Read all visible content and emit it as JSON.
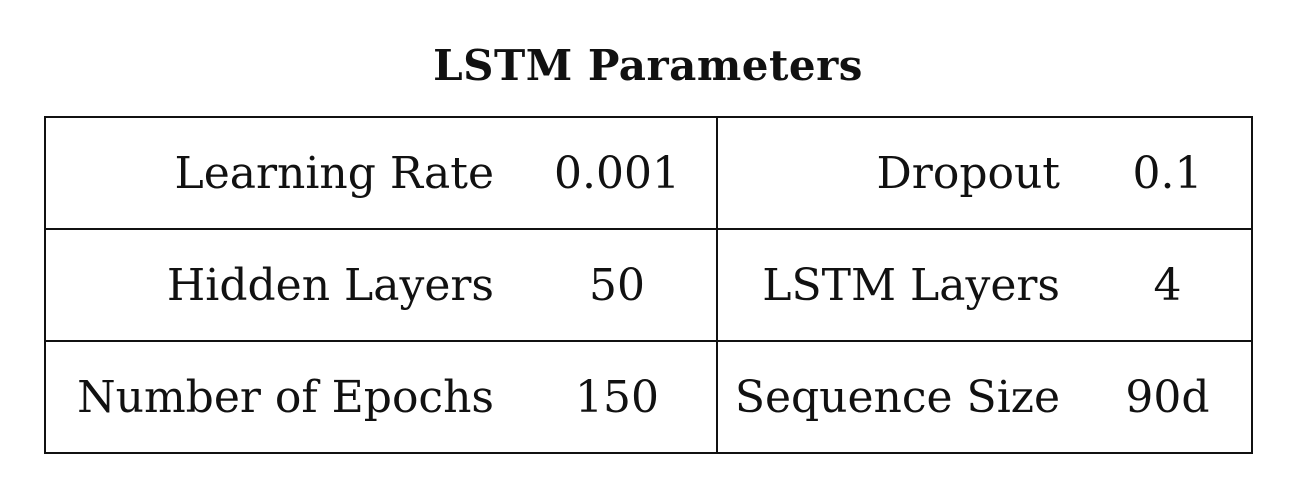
{
  "table": {
    "title": "LSTM Parameters",
    "rows": [
      [
        {
          "label": "Learning Rate",
          "value": "0.001"
        },
        {
          "label": "Dropout",
          "value": "0.1"
        }
      ],
      [
        {
          "label": "Hidden Layers",
          "value": "50"
        },
        {
          "label": "LSTM Layers",
          "value": "4"
        }
      ],
      [
        {
          "label": "Number of Epochs",
          "value": "150"
        },
        {
          "label": "Sequence Size",
          "value": "90d"
        }
      ]
    ]
  }
}
